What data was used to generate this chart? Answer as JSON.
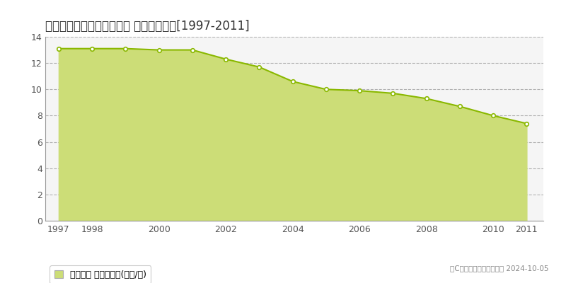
{
  "title": "広島市安佐北区白木町井原 基準地価推移[1997-2011]",
  "years": [
    1997,
    1998,
    1999,
    2000,
    2001,
    2002,
    2003,
    2004,
    2005,
    2006,
    2007,
    2008,
    2009,
    2010,
    2011
  ],
  "values": [
    13.1,
    13.1,
    13.1,
    13.0,
    13.0,
    12.3,
    11.7,
    10.6,
    10.0,
    9.9,
    9.7,
    9.3,
    8.7,
    8.0,
    7.4
  ],
  "line_color": "#8ab800",
  "fill_color": "#ccdd77",
  "fill_alpha": 1.0,
  "marker_color": "white",
  "marker_edge_color": "#8ab800",
  "ylim": [
    0,
    14
  ],
  "yticks": [
    0,
    2,
    4,
    6,
    8,
    10,
    12,
    14
  ],
  "xtick_labels": [
    "1997",
    "1998",
    "2000",
    "2002",
    "2004",
    "2006",
    "2008",
    "2010",
    "2011"
  ],
  "xtick_positions": [
    1997,
    1998,
    2000,
    2002,
    2004,
    2006,
    2008,
    2010,
    2011
  ],
  "grid_color": "#aaaaaa",
  "bg_color": "#f5f5f5",
  "legend_label": "基準地価 平均坪単価(万円/坪)",
  "copyright_text": "（C）土地価格ドットコム 2024-10-05"
}
